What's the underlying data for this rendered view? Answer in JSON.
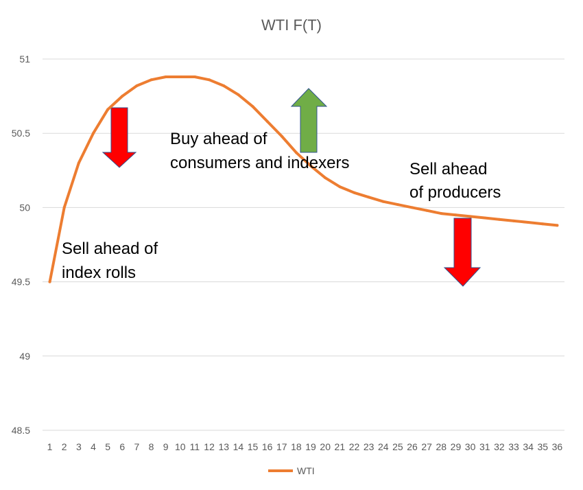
{
  "chart_data": {
    "type": "line",
    "title": "WTI F(T)",
    "xlabel": "",
    "ylabel": "",
    "ylim": [
      48.5,
      51
    ],
    "yticks": [
      "48.5",
      "49",
      "49.5",
      "50",
      "50.5",
      "51"
    ],
    "grid": true,
    "legend": "bottom",
    "categories": [
      "1",
      "2",
      "3",
      "4",
      "5",
      "6",
      "7",
      "8",
      "9",
      "10",
      "11",
      "12",
      "13",
      "14",
      "15",
      "16",
      "17",
      "18",
      "19",
      "20",
      "21",
      "22",
      "23",
      "24",
      "25",
      "26",
      "27",
      "28",
      "29",
      "30",
      "31",
      "32",
      "33",
      "34",
      "35",
      "36"
    ],
    "series": [
      {
        "name": "WTI",
        "color": "#ED7D31",
        "values": [
          49.5,
          50.0,
          50.3,
          50.5,
          50.66,
          50.75,
          50.82,
          50.86,
          50.88,
          50.88,
          50.88,
          50.86,
          50.82,
          50.76,
          50.68,
          50.58,
          50.48,
          50.37,
          50.28,
          50.2,
          50.14,
          50.1,
          50.07,
          50.04,
          50.02,
          50.0,
          49.98,
          49.96,
          49.95,
          49.94,
          49.93,
          49.92,
          49.91,
          49.9,
          49.89,
          49.88
        ]
      }
    ],
    "annotations": [
      {
        "id": "index-rolls",
        "lines": [
          "Sell ahead of",
          "index rolls"
        ]
      },
      {
        "id": "consumers",
        "lines": [
          "Buy ahead of",
          "consumers and indexers"
        ]
      },
      {
        "id": "producers",
        "lines": [
          "Sell ahead",
          "of producers"
        ]
      }
    ],
    "arrows": [
      {
        "id": "down-arrow-left",
        "direction": "down",
        "color": "#FF0000",
        "at_category": "6"
      },
      {
        "id": "up-arrow",
        "direction": "up",
        "color": "#70AD47",
        "at_category": "19"
      },
      {
        "id": "down-arrow-right",
        "direction": "down",
        "color": "#FF0000",
        "at_category": "30"
      }
    ]
  }
}
